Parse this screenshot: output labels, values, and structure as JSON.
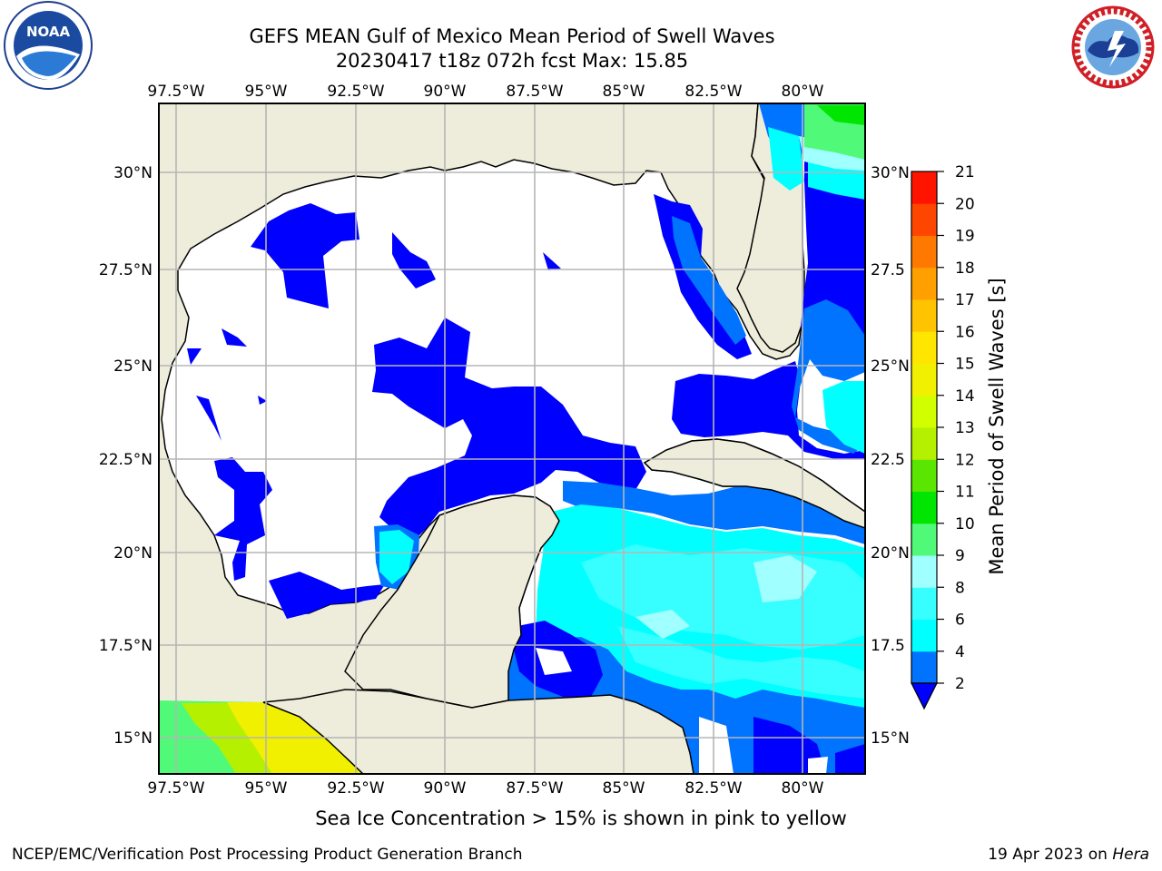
{
  "header": {
    "title_line1": "GEFS MEAN Gulf of Mexico Mean Period of Swell Waves",
    "title_line2": "20230417 t18z 072h fcst   Max: 15.85"
  },
  "logos": {
    "noaa": {
      "text": "NOAA",
      "ring_text": "NATIONAL OCEANIC AND ATMOSPHERIC ADMINISTRATION · U.S. DEPARTMENT OF COMMERCE"
    },
    "nws": {
      "ring_text": "NATIONAL WEATHER SERVICE"
    }
  },
  "map": {
    "lon_labels": [
      "97.5°W",
      "95°W",
      "92.5°W",
      "90°W",
      "87.5°W",
      "85°W",
      "82.5°W",
      "80°W"
    ],
    "lat_labels_left": [
      "30°N",
      "27.5°N",
      "25°N",
      "22.5°N",
      "20°N",
      "17.5°N",
      "15°N"
    ],
    "lat_labels_right": [
      "30°N",
      "27.5",
      "25°N",
      "22.5",
      "20°N",
      "17.5",
      "15°N"
    ],
    "colors": {
      "land": "#eeeddb",
      "gridline": "#b5b5b5",
      "coastline": "#000000"
    }
  },
  "colorbar": {
    "title": "Mean Period of Swell Waves [s]",
    "ticks": [
      "2",
      "4",
      "6",
      "8",
      "9",
      "10",
      "11",
      "12",
      "13",
      "14",
      "15",
      "16",
      "17",
      "18",
      "19",
      "20",
      "21"
    ],
    "colors": [
      "#0000ff",
      "#0073ff",
      "#00ffff",
      "#37ffff",
      "#a0ffff",
      "#50fa78",
      "#00e600",
      "#5ae600",
      "#b4f000",
      "#d2ff00",
      "#f0f000",
      "#ffe600",
      "#ffc300",
      "#ffa000",
      "#ff7800",
      "#ff4600",
      "#ff1400",
      "#ff0000"
    ]
  },
  "note": "Sea Ice Concentration > 15% is shown in pink to yellow",
  "footer": {
    "left": "NCEP/EMC/Verification Post Processing Product Generation Branch",
    "right_prefix": "19 Apr 2023 on ",
    "right_machine": "Hera"
  }
}
